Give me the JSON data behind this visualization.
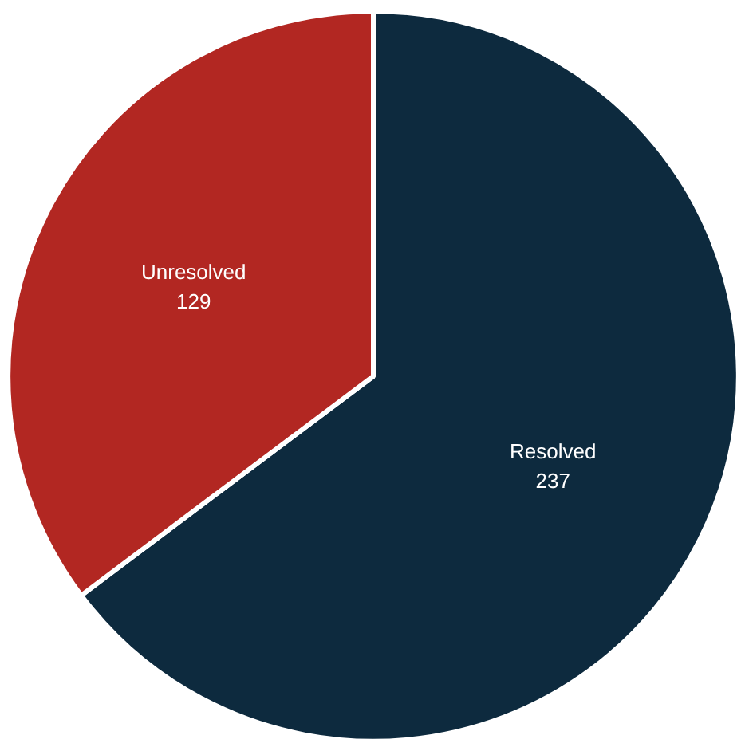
{
  "chart_data": {
    "type": "pie",
    "categories": [
      "Resolved",
      "Unresolved"
    ],
    "values": [
      237,
      129
    ],
    "colors": [
      "#0d2a3e",
      "#b22722"
    ],
    "data_labels": true
  }
}
